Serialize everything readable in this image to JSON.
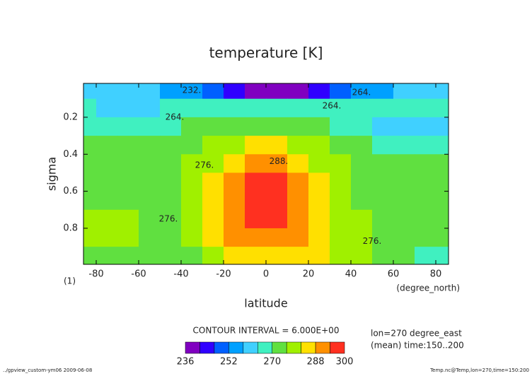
{
  "chart_data": {
    "type": "contour",
    "title": "temperature [K]",
    "x_label": "latitude",
    "y_label": "sigma",
    "x_unit": "(degree_north)",
    "y_unit": "(1)",
    "xlim": [
      -86,
      86
    ],
    "ylim": [
      0.017,
      0.995
    ],
    "y_inverted": true,
    "xticks": [
      -80,
      -60,
      -40,
      -20,
      0,
      20,
      40,
      60,
      80
    ],
    "yticks": [
      0.2,
      0.4,
      0.6,
      0.8
    ],
    "lat": [
      -85,
      -75,
      -65,
      -55,
      -45,
      -35,
      -25,
      -15,
      -5,
      5,
      15,
      25,
      35,
      45,
      55,
      65,
      75,
      85
    ],
    "sigma": [
      0.05,
      0.15,
      0.25,
      0.35,
      0.45,
      0.55,
      0.65,
      0.75,
      0.85,
      0.95
    ],
    "z": [
      [
        260,
        259,
        258,
        258,
        257,
        255,
        251,
        245,
        238,
        236,
        239,
        245,
        251,
        255,
        257,
        258,
        258,
        259
      ],
      [
        266,
        263,
        262,
        263,
        265,
        267,
        267,
        266,
        265,
        265,
        266,
        267,
        267,
        266,
        265,
        265,
        265,
        266
      ],
      [
        268,
        267,
        267,
        267,
        268,
        270,
        272,
        273,
        273,
        273,
        272,
        270,
        268,
        266,
        263,
        262,
        262,
        263
      ],
      [
        271,
        271,
        271,
        271,
        272,
        274,
        277,
        281,
        283,
        283,
        281,
        277,
        273,
        271,
        268,
        267,
        267,
        268
      ],
      [
        273,
        273,
        273,
        273,
        274,
        276,
        280,
        286,
        290,
        290,
        286,
        281,
        276,
        273,
        271,
        270,
        270,
        270
      ],
      [
        273,
        273,
        273,
        274,
        275,
        277,
        282,
        289,
        294,
        294,
        290,
        284,
        278,
        274,
        272,
        272,
        272,
        272
      ],
      [
        275,
        274,
        274,
        274,
        275,
        277,
        283,
        291,
        296,
        296,
        292,
        286,
        280,
        275,
        273,
        273,
        273,
        273
      ],
      [
        277,
        277,
        276,
        275,
        275,
        277,
        283,
        291,
        296,
        296,
        293,
        287,
        281,
        276,
        274,
        274,
        274,
        274
      ],
      [
        277,
        277,
        276,
        275,
        275,
        277,
        282,
        289,
        293,
        293,
        291,
        287,
        281,
        277,
        274,
        274,
        274,
        274
      ],
      [
        274,
        274,
        273,
        273,
        273,
        275,
        278,
        283,
        286,
        287,
        287,
        284,
        280,
        276,
        273,
        270,
        268,
        266
      ]
    ],
    "contour_labels": [
      {
        "label": "232.",
        "lat": -35,
        "sigma": 0.055
      },
      {
        "label": "264.",
        "lat": 45,
        "sigma": 0.066
      },
      {
        "label": "264.",
        "lat": 31,
        "sigma": 0.14
      },
      {
        "label": "264.",
        "lat": -43,
        "sigma": 0.2
      },
      {
        "label": "276.",
        "lat": -29,
        "sigma": 0.46
      },
      {
        "label": "288.",
        "lat": 6,
        "sigma": 0.44
      },
      {
        "label": "276.",
        "lat": -46,
        "sigma": 0.75
      },
      {
        "label": "276.",
        "lat": 50,
        "sigma": 0.87
      }
    ],
    "colorbar": {
      "levels": [
        236,
        240,
        246,
        252,
        258,
        264,
        270,
        276,
        282,
        288,
        294,
        300
      ],
      "colors": [
        "#8000c0",
        "#3000ff",
        "#0060ff",
        "#00a0ff",
        "#40d0ff",
        "#40f0c0",
        "#60e040",
        "#a0f000",
        "#ffe000",
        "#ff9000",
        "#ff3020"
      ],
      "ticks": [
        236,
        252,
        270,
        288,
        300
      ]
    },
    "contour_interval_text": "CONTOUR INTERVAL = 6.000E+00",
    "info": [
      "lon=270 degree_east",
      "(mean) time:150..200"
    ],
    "footer_left": "../gpview_custom-ym06  2009-06-08",
    "footer_right": "Temp.nc@Temp,lon=270,time=150:200"
  }
}
